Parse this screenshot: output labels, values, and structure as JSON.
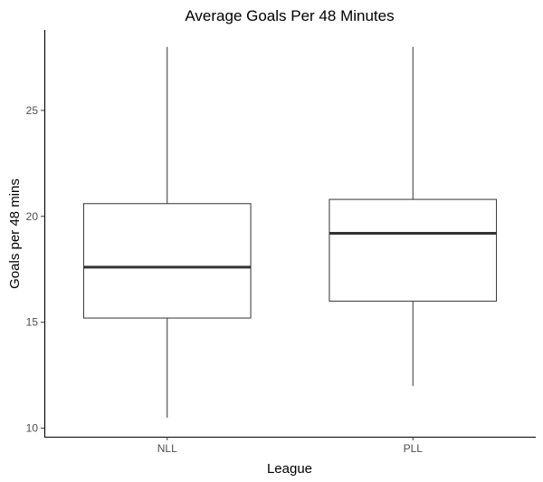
{
  "chart_data": {
    "type": "boxplot",
    "title": "Average Goals Per 48 Minutes",
    "xlabel": "League",
    "ylabel": "Goals per 48 mins",
    "categories": [
      "NLL",
      "PLL"
    ],
    "boxes": [
      {
        "category": "NLL",
        "min": 10.5,
        "q1": 15.2,
        "median": 17.6,
        "q3": 20.6,
        "max": 28.0
      },
      {
        "category": "PLL",
        "min": 12.0,
        "q1": 16.0,
        "median": 19.2,
        "q3": 20.8,
        "max": 28.0
      }
    ],
    "ylim": [
      9.6,
      28.8
    ],
    "yticks": [
      10,
      15,
      20,
      25
    ],
    "grid": false,
    "legend": "none",
    "colors": {
      "box_fill": "#ffffff",
      "box_stroke": "#333333",
      "axis": "#000000",
      "tick_text": "#4d4d4d"
    }
  }
}
